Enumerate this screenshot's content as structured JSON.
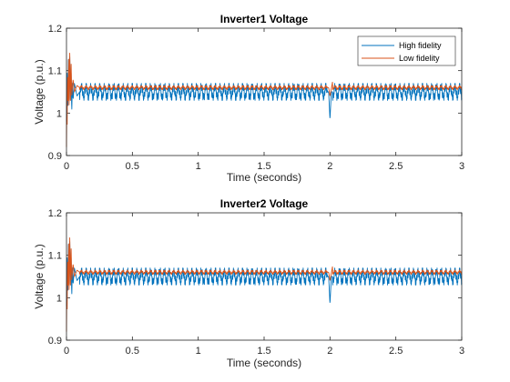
{
  "chart_data": [
    {
      "type": "line",
      "title": "Inverter1 Voltage",
      "xlabel": "Time (seconds)",
      "ylabel": "Voltage (p.u.)",
      "xlim": [
        0,
        3
      ],
      "ylim": [
        0.9,
        1.2
      ],
      "xticks": [
        0,
        0.5,
        1,
        1.5,
        2,
        2.5,
        3
      ],
      "xtick_labels": [
        "0",
        "0.5",
        "1",
        "1.5",
        "2",
        "2.5",
        "3"
      ],
      "yticks": [
        0.9,
        1.0,
        1.1,
        1.2
      ],
      "ytick_labels": [
        "0.9",
        "1",
        "1.1",
        "1.2"
      ],
      "grid": false,
      "legend_position": "top-right",
      "series": [
        {
          "name": "High fidelity",
          "color": "#0072BD",
          "x": [
            0,
            0.005,
            0.01,
            0.015,
            0.02,
            0.025,
            0.03,
            0.035,
            0.04,
            0.045,
            0.05,
            0.06,
            0.08,
            0.1,
            0.2,
            0.5,
            1,
            1.5,
            1.99,
            2.0,
            2.01,
            2.5,
            3
          ],
          "y": [
            0.98,
            1.1,
            1.0,
            1.15,
            1.02,
            1.14,
            1.03,
            1.1,
            1.0,
            1.08,
            1.03,
            1.07,
            1.04,
            1.05,
            1.05,
            1.05,
            1.05,
            1.05,
            1.05,
            0.985,
            1.05,
            1.05,
            1.05
          ],
          "oscillation_band": [
            1.03,
            1.07
          ],
          "oscillation_period": 0.035
        },
        {
          "name": "Low fidelity",
          "color": "#D95319",
          "x": [
            0,
            0.002,
            0.005,
            0.008,
            0.012,
            0.016,
            0.02,
            0.025,
            0.03,
            0.035,
            0.04,
            0.05,
            0.06,
            0.08,
            0.1,
            0.5,
            1,
            1.5,
            1.99,
            2.0,
            2.02,
            2.05,
            2.1,
            2.5,
            3
          ],
          "y": [
            0.92,
            1.0,
            0.96,
            1.1,
            1.02,
            1.13,
            1.0,
            1.15,
            1.03,
            1.12,
            1.04,
            1.08,
            1.05,
            1.065,
            1.06,
            1.06,
            1.06,
            1.06,
            1.06,
            1.04,
            1.075,
            1.05,
            1.06,
            1.06,
            1.06
          ],
          "oscillation_band": [
            1.055,
            1.065
          ],
          "oscillation_period": 0.035
        }
      ]
    },
    {
      "type": "line",
      "title": "Inverter2 Voltage",
      "xlabel": "Time (seconds)",
      "ylabel": "Voltage (p.u.)",
      "xlim": [
        0,
        3
      ],
      "ylim": [
        0.9,
        1.2
      ],
      "xticks": [
        0,
        0.5,
        1,
        1.5,
        2,
        2.5,
        3
      ],
      "xtick_labels": [
        "0",
        "0.5",
        "1",
        "1.5",
        "2",
        "2.5",
        "3"
      ],
      "yticks": [
        0.9,
        1.0,
        1.1,
        1.2
      ],
      "ytick_labels": [
        "0.9",
        "1",
        "1.1",
        "1.2"
      ],
      "grid": false,
      "legend_position": "none",
      "series": [
        {
          "color": "#0072BD",
          "x": [
            0,
            0.005,
            0.01,
            0.015,
            0.02,
            0.025,
            0.03,
            0.035,
            0.04,
            0.045,
            0.05,
            0.06,
            0.08,
            0.1,
            0.2,
            0.5,
            1,
            1.5,
            1.99,
            2.0,
            2.01,
            2.5,
            3
          ],
          "y": [
            0.98,
            1.1,
            1.0,
            1.15,
            1.02,
            1.14,
            1.03,
            1.1,
            1.0,
            1.08,
            1.03,
            1.07,
            1.04,
            1.05,
            1.05,
            1.05,
            1.05,
            1.05,
            1.05,
            0.985,
            1.05,
            1.05,
            1.05
          ],
          "oscillation_band": [
            1.03,
            1.07
          ],
          "oscillation_period": 0.035
        },
        {
          "color": "#D95319",
          "x": [
            0,
            0.002,
            0.005,
            0.008,
            0.012,
            0.016,
            0.02,
            0.025,
            0.03,
            0.035,
            0.04,
            0.05,
            0.06,
            0.08,
            0.1,
            0.5,
            1,
            1.5,
            1.99,
            2.0,
            2.02,
            2.05,
            2.1,
            2.5,
            3
          ],
          "y": [
            0.92,
            1.0,
            0.96,
            1.1,
            1.02,
            1.13,
            1.0,
            1.15,
            1.03,
            1.12,
            1.04,
            1.08,
            1.05,
            1.065,
            1.06,
            1.06,
            1.06,
            1.06,
            1.06,
            1.04,
            1.075,
            1.05,
            1.06,
            1.06,
            1.06
          ],
          "oscillation_band": [
            1.055,
            1.065
          ],
          "oscillation_period": 0.035
        }
      ]
    }
  ]
}
